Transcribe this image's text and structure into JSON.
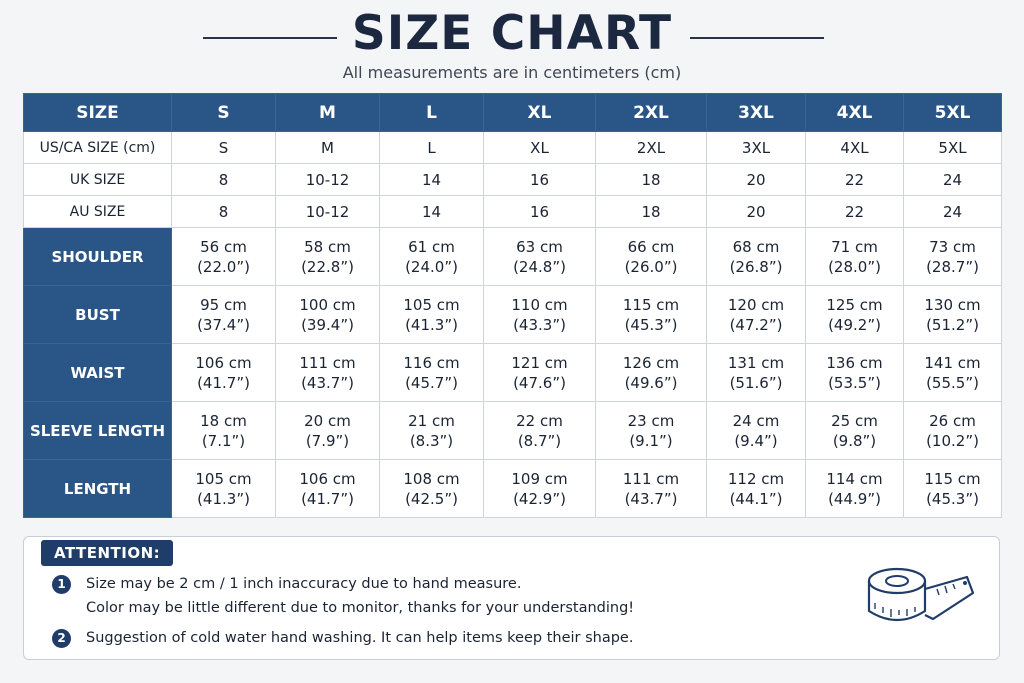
{
  "header": {
    "title": "SIZE CHART",
    "subtitle": "All measurements are in centimeters (cm)"
  },
  "table": {
    "header_label": "SIZE",
    "sizes": [
      "S",
      "M",
      "L",
      "XL",
      "2XL",
      "3XL",
      "4XL",
      "5XL"
    ],
    "intl_rows": [
      {
        "label": "US/CA SIZE (cm)",
        "values": [
          "S",
          "M",
          "L",
          "XL",
          "2XL",
          "3XL",
          "4XL",
          "5XL"
        ]
      },
      {
        "label": "UK SIZE",
        "values": [
          "8",
          "10-12",
          "14",
          "16",
          "18",
          "20",
          "22",
          "24"
        ]
      },
      {
        "label": "AU SIZE",
        "values": [
          "8",
          "10-12",
          "14",
          "16",
          "18",
          "20",
          "22",
          "24"
        ]
      }
    ],
    "measure_rows": [
      {
        "label": "SHOULDER",
        "cm": [
          "56 cm",
          "58 cm",
          "61 cm",
          "63 cm",
          "66 cm",
          "68 cm",
          "71 cm",
          "73 cm"
        ],
        "inch": [
          "(22.0”)",
          "(22.8”)",
          "(24.0”)",
          "(24.8”)",
          "(26.0”)",
          "(26.8”)",
          "(28.0”)",
          "(28.7”)"
        ]
      },
      {
        "label": "BUST",
        "cm": [
          "95 cm",
          "100 cm",
          "105 cm",
          "110 cm",
          "115 cm",
          "120 cm",
          "125 cm",
          "130 cm"
        ],
        "inch": [
          "(37.4”)",
          "(39.4”)",
          "(41.3”)",
          "(43.3”)",
          "(45.3”)",
          "(47.2”)",
          "(49.2”)",
          "(51.2”)"
        ]
      },
      {
        "label": "WAIST",
        "cm": [
          "106 cm",
          "111 cm",
          "116 cm",
          "121 cm",
          "126 cm",
          "131 cm",
          "136 cm",
          "141 cm"
        ],
        "inch": [
          "(41.7”)",
          "(43.7”)",
          "(45.7”)",
          "(47.6”)",
          "(49.6”)",
          "(51.6”)",
          "(53.5”)",
          "(55.5”)"
        ]
      },
      {
        "label": "SLEEVE LENGTH",
        "cm": [
          "18 cm",
          "20 cm",
          "21 cm",
          "22 cm",
          "23 cm",
          "24 cm",
          "25 cm",
          "26 cm"
        ],
        "inch": [
          "(7.1”)",
          "(7.9”)",
          "(8.3”)",
          "(8.7”)",
          "(9.1”)",
          "(9.4”)",
          "(9.8”)",
          "(10.2”)"
        ]
      },
      {
        "label": "LENGTH",
        "cm": [
          "105 cm",
          "106 cm",
          "108 cm",
          "109 cm",
          "111 cm",
          "112 cm",
          "114 cm",
          "115 cm"
        ],
        "inch": [
          "(41.3”)",
          "(41.7”)",
          "(42.5”)",
          "(42.9”)",
          "(43.7”)",
          "(44.1”)",
          "(44.9”)",
          "(45.3”)"
        ]
      }
    ]
  },
  "attention": {
    "title": "ATTENTION:",
    "notes": [
      {
        "number": "1",
        "lines": [
          "Size may be 2 cm / 1 inch inaccuracy due to hand measure.",
          "Color may be little different due to monitor, thanks for your understanding!"
        ]
      },
      {
        "number": "2",
        "lines": [
          "Suggestion of cold water hand washing. It can help items keep their shape."
        ]
      }
    ],
    "icon": "measuring-tape-icon"
  },
  "colors": {
    "header_blue": "#2a5587",
    "tag_blue": "#1f3d68",
    "background": "#f4f5f7"
  }
}
